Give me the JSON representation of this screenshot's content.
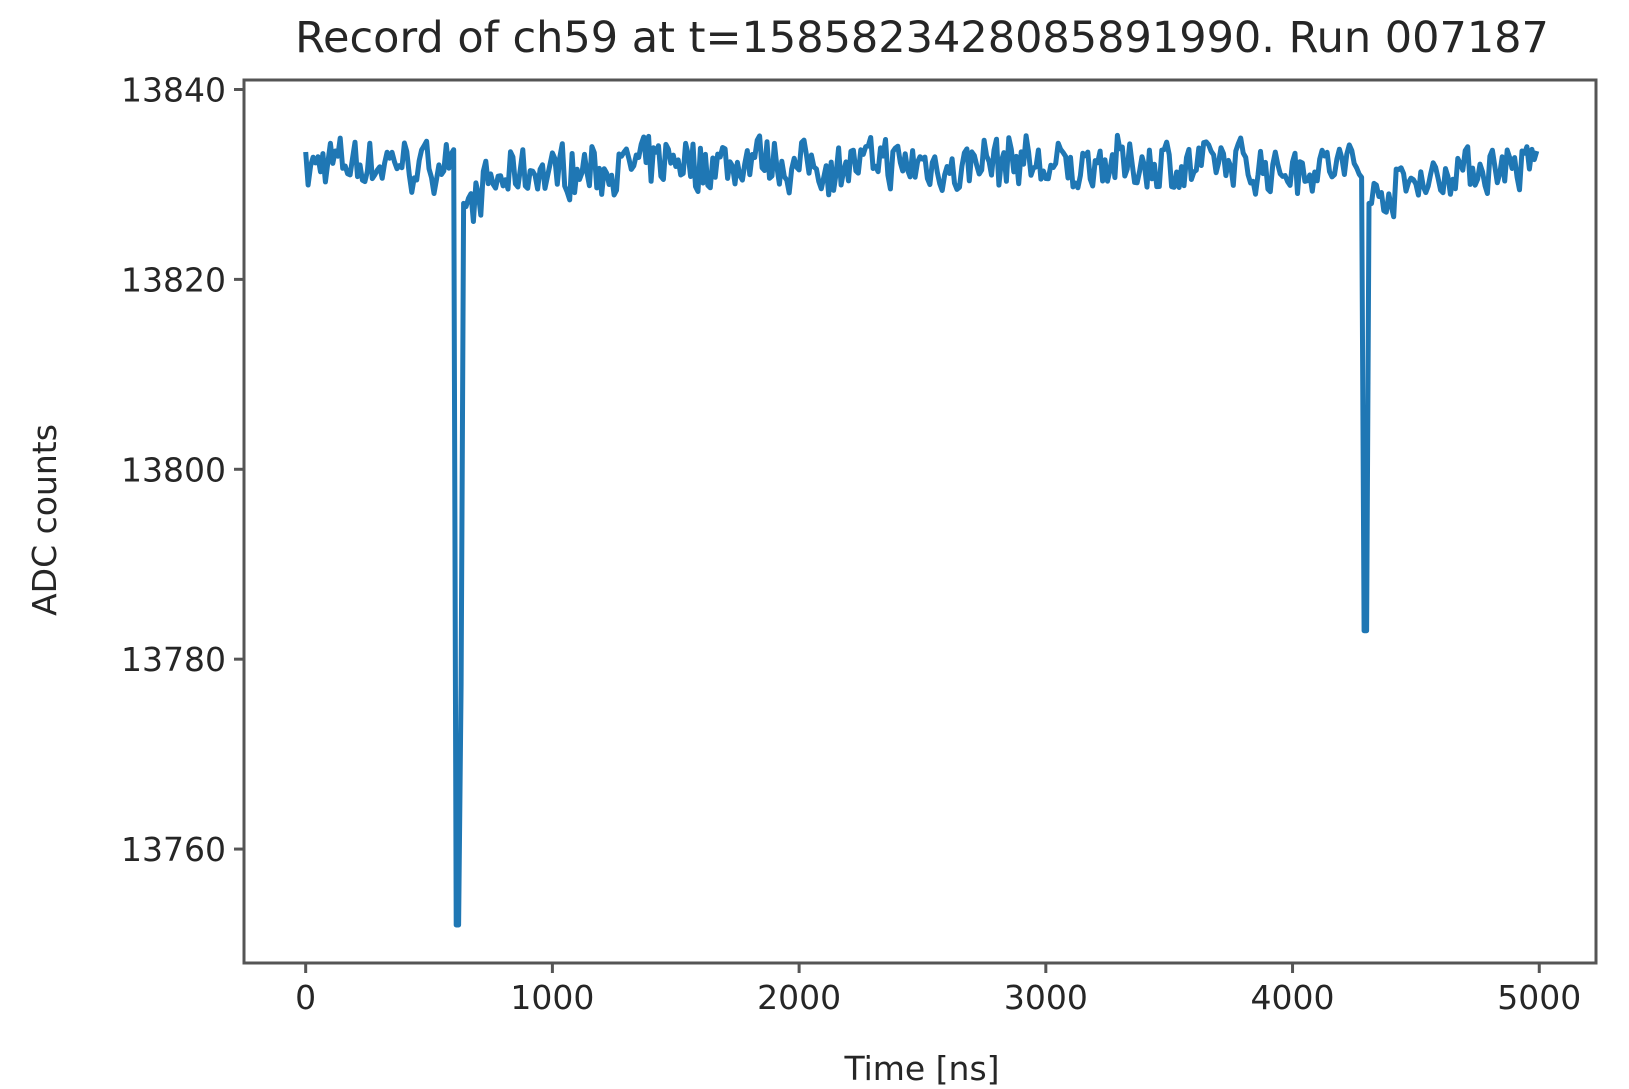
{
  "chart_data": {
    "type": "line",
    "title": "Record of ch59 at t=1585823428085891990. Run 007187",
    "xlabel": "Time [ns]",
    "ylabel": "ADC counts",
    "xlim": [
      -250,
      5230
    ],
    "ylim": [
      13748,
      13841
    ],
    "xticks": [
      0,
      1000,
      2000,
      3000,
      4000,
      5000
    ],
    "yticks": [
      13760,
      13780,
      13800,
      13820,
      13840
    ],
    "color": "#1f77b4",
    "grid": false,
    "series": [
      {
        "x_start": 0,
        "x_step": 10,
        "baseline": 13832,
        "noise_amplitude": 2.4,
        "pulses": [
          {
            "x": 610,
            "min": 13752,
            "width": 30
          },
          {
            "x": 4290,
            "min": 13783,
            "width": 20
          }
        ],
        "x_end": 4990
      }
    ]
  }
}
